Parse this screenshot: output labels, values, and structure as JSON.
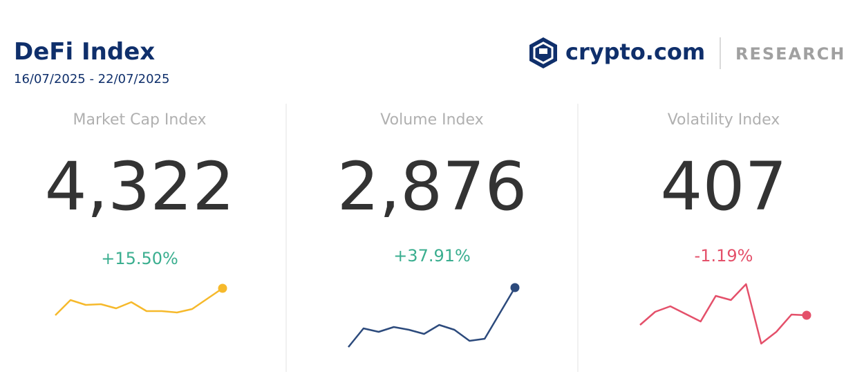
{
  "header": {
    "title": "DeFi Index",
    "date_range": "16/07/2025 - 22/07/2025",
    "brand": "crypto.com",
    "section": "RESEARCH"
  },
  "cards": [
    {
      "label": "Market Cap Index",
      "value": "4,322",
      "change": "+15.50%",
      "change_color": "#3aae8f",
      "sparkline": {
        "type": "line",
        "color": "#f6b92b",
        "ylim": [
          10,
          60
        ],
        "values": [
          14,
          36,
          29,
          30,
          24,
          33,
          20,
          20,
          18,
          23,
          38,
          53
        ]
      }
    },
    {
      "label": "Volume Index",
      "value": "2,876",
      "change": "+37.91%",
      "change_color": "#3aae8f",
      "sparkline": {
        "type": "line",
        "color": "#2c4a7c",
        "ylim": [
          10,
          110
        ],
        "values": [
          18,
          45,
          40,
          47,
          43,
          37,
          50,
          43,
          27,
          30,
          67,
          104
        ]
      }
    },
    {
      "label": "Volatility Index",
      "value": "407",
      "change": "-1.19%",
      "change_color": "#e4506a",
      "sparkline": {
        "type": "line",
        "color": "#e4506a",
        "ylim": [
          15,
          115
        ],
        "values": [
          50,
          69,
          77,
          66,
          55,
          92,
          86,
          109,
          23,
          40,
          65,
          64
        ]
      }
    }
  ]
}
